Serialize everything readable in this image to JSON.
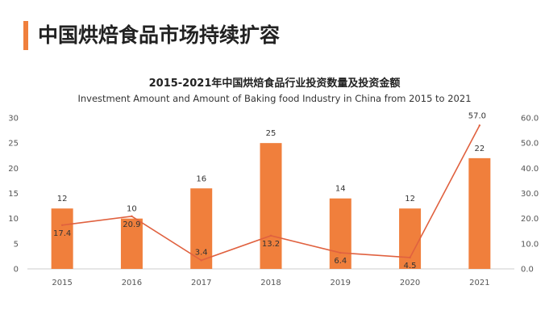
{
  "page": {
    "title": "中国烘焙食品市场持续扩容"
  },
  "colors": {
    "accent": "#F07F3C",
    "bar": "#F07F3C",
    "line": "#E0613F"
  },
  "chart_data": {
    "type": "bar",
    "title": "2015-2021年中国烘焙食品行业投资数量及投资金额",
    "subtitle": "Investment Amount and Amount of Baking food Industry in China from 2015 to 2021",
    "categories": [
      "2015",
      "2016",
      "2017",
      "2018",
      "2019",
      "2020",
      "2021"
    ],
    "series": [
      {
        "type": "bar",
        "axis": "left",
        "values": [
          12,
          10,
          16,
          25,
          14,
          12,
          22
        ],
        "labels": [
          "12",
          "10",
          "16",
          "25",
          "14",
          "12",
          "22"
        ]
      },
      {
        "type": "line",
        "axis": "right",
        "values": [
          17.4,
          20.9,
          3.4,
          13.2,
          6.4,
          4.5,
          57.0
        ],
        "labels": [
          "17.4",
          "20.9",
          "3.4",
          "13.2",
          "6.4",
          "4.5",
          "57.0"
        ]
      }
    ],
    "y_left": {
      "min": 0,
      "max": 30,
      "ticks": [
        "0",
        "5",
        "10",
        "15",
        "20",
        "25",
        "30"
      ]
    },
    "y_right": {
      "min": 0,
      "max": 60,
      "ticks": [
        "0.0",
        "10.0",
        "20.0",
        "30.0",
        "40.0",
        "50.0",
        "60.0"
      ]
    },
    "grid": false,
    "legend": "none"
  }
}
